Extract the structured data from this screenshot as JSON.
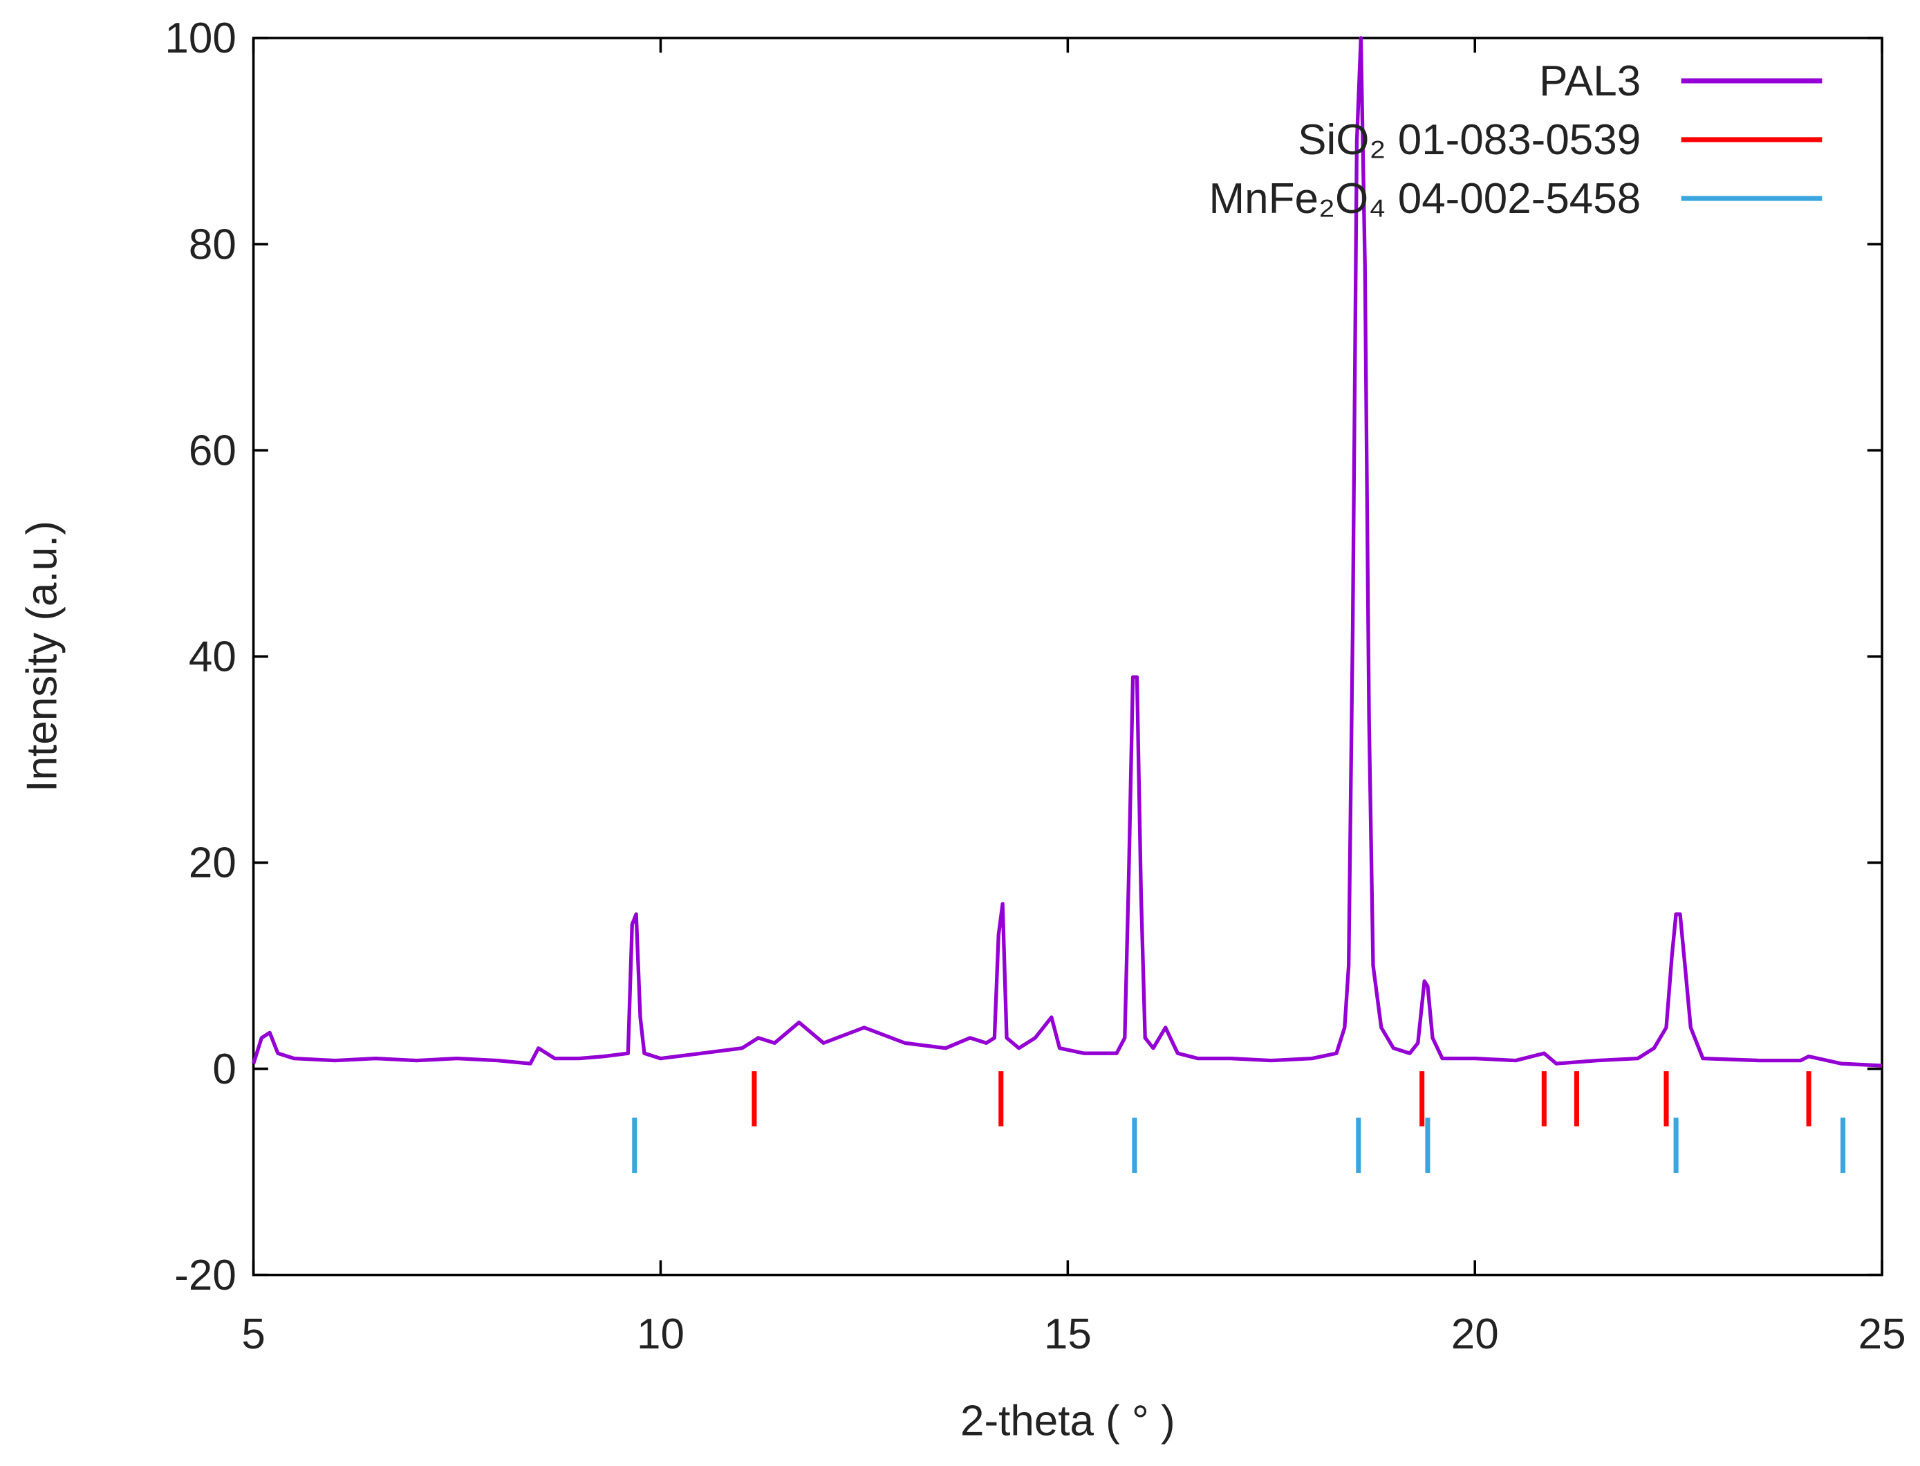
{
  "chart_data": {
    "type": "xrd",
    "xlabel": "2-theta ( ° )",
    "ylabel": "Intensity (a.u.)",
    "xlim": [
      5,
      25
    ],
    "xticks": [
      5,
      10,
      15,
      20,
      25
    ],
    "ylim": [
      -20,
      100
    ],
    "yticks": [
      -20,
      0,
      20,
      40,
      60,
      80,
      100
    ],
    "legend": "top-right",
    "series": [
      {
        "name": "PAL3",
        "color": "#9400d3",
        "kind": "line",
        "x": [
          5.0,
          5.1,
          5.2,
          5.3,
          5.5,
          6,
          6.5,
          7,
          7.5,
          8,
          8.4,
          8.5,
          8.7,
          9,
          9.3,
          9.6,
          9.65,
          9.7,
          9.75,
          9.8,
          10,
          10.5,
          11,
          11.2,
          11.4,
          11.7,
          12,
          12.5,
          13,
          13.5,
          13.8,
          14,
          14.1,
          14.15,
          14.2,
          14.25,
          14.4,
          14.6,
          14.8,
          14.9,
          15.2,
          15.6,
          15.7,
          15.75,
          15.8,
          15.85,
          15.9,
          15.95,
          16.05,
          16.2,
          16.35,
          16.6,
          17,
          17.5,
          18,
          18.3,
          18.4,
          18.45,
          18.5,
          18.55,
          18.6,
          18.65,
          18.7,
          18.75,
          18.85,
          19,
          19.2,
          19.3,
          19.38,
          19.42,
          19.48,
          19.6,
          20,
          20.5,
          20.85,
          21,
          21.5,
          22,
          22.2,
          22.35,
          22.42,
          22.47,
          22.52,
          22.58,
          22.65,
          22.8,
          23.5,
          24,
          24.1,
          24.5,
          25
        ],
        "values": [
          0.5,
          3,
          3.5,
          1.5,
          1,
          0.8,
          1,
          0.8,
          1,
          0.8,
          0.5,
          2,
          1,
          1,
          1.2,
          1.5,
          14,
          15,
          5,
          1.5,
          1,
          1.5,
          2,
          3,
          2.5,
          4.5,
          2.5,
          4,
          2.5,
          2,
          3,
          2.5,
          3,
          13,
          16,
          3,
          2,
          3,
          5,
          2,
          1.5,
          1.5,
          3,
          19,
          38,
          38,
          17,
          3,
          2,
          4,
          1.5,
          1,
          1,
          0.8,
          1,
          1.5,
          4,
          10,
          43,
          90,
          100,
          78,
          34,
          10,
          4,
          2,
          1.5,
          2.5,
          8.5,
          8,
          3,
          1,
          1,
          0.8,
          1.5,
          0.5,
          0.8,
          1,
          2,
          4,
          11,
          15,
          15,
          10,
          4,
          1,
          0.8,
          0.8,
          1.2,
          0.5,
          0.3
        ]
      },
      {
        "name": "SiO₂ 01-083-0539",
        "color": "#ff0000",
        "kind": "sticks",
        "x": [
          11.15,
          14.18,
          19.35,
          20.85,
          21.25,
          22.35,
          24.1
        ]
      },
      {
        "name": "MnFe₂O₄ 04-002-5458",
        "color": "#3aa6dd",
        "kind": "sticks",
        "x": [
          9.68,
          15.82,
          18.57,
          19.42,
          22.47,
          24.52
        ]
      }
    ]
  }
}
